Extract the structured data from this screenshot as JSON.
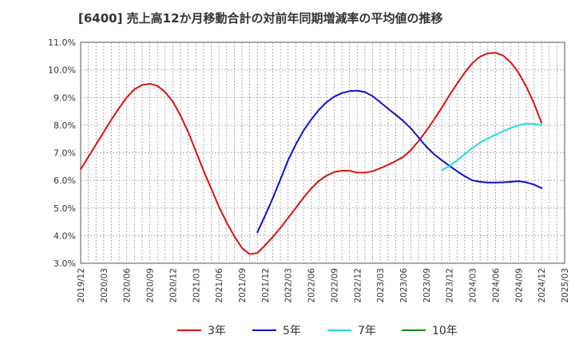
{
  "chart_data": {
    "type": "line",
    "title": "[6400]  売上高12か月移動合計の対前年同期増減率の平均値の推移",
    "xlabel": "",
    "ylabel": "",
    "ylim": [
      3.0,
      11.0
    ],
    "y_ticks": [
      "11.0%",
      "10.0%",
      "9.0%",
      "8.0%",
      "7.0%",
      "6.0%",
      "5.0%",
      "4.0%",
      "3.0%"
    ],
    "x_ticks": [
      "2019/12",
      "2020/03",
      "2020/06",
      "2020/09",
      "2020/12",
      "2021/03",
      "2021/06",
      "2021/09",
      "2021/12",
      "2022/03",
      "2022/06",
      "2022/09",
      "2022/12",
      "2023/03",
      "2023/06",
      "2023/09",
      "2023/12",
      "2024/03",
      "2024/06",
      "2024/09",
      "2024/12",
      "2025/03"
    ],
    "grid": true,
    "legend_position": "bottom",
    "series": [
      {
        "name": "3年",
        "color": "#dd1111",
        "x": [
          "2019/12",
          "2020/01",
          "2020/02",
          "2020/03",
          "2020/04",
          "2020/05",
          "2020/06",
          "2020/07",
          "2020/08",
          "2020/09",
          "2020/10",
          "2020/11",
          "2020/12",
          "2021/01",
          "2021/02",
          "2021/03",
          "2021/04",
          "2021/05",
          "2021/06",
          "2021/07",
          "2021/08",
          "2021/09",
          "2021/10",
          "2021/11",
          "2021/12",
          "2022/01",
          "2022/02",
          "2022/03",
          "2022/04",
          "2022/05",
          "2022/06",
          "2022/07",
          "2022/08",
          "2022/09",
          "2022/10",
          "2022/11",
          "2022/12",
          "2023/01",
          "2023/02",
          "2023/03",
          "2023/04",
          "2023/05",
          "2023/06",
          "2023/07",
          "2023/08",
          "2023/09",
          "2023/10",
          "2023/11",
          "2023/12",
          "2024/01",
          "2024/02",
          "2024/03",
          "2024/04",
          "2024/05",
          "2024/06",
          "2024/07",
          "2024/08",
          "2024/09",
          "2024/10",
          "2024/11",
          "2024/12"
        ],
        "values": [
          6.4,
          6.85,
          7.3,
          7.75,
          8.2,
          8.62,
          9.0,
          9.3,
          9.45,
          9.5,
          9.42,
          9.2,
          8.85,
          8.35,
          7.75,
          7.05,
          6.35,
          5.7,
          5.05,
          4.48,
          3.98,
          3.55,
          3.33,
          3.37,
          3.65,
          3.95,
          4.28,
          4.64,
          5.0,
          5.37,
          5.7,
          5.98,
          6.17,
          6.3,
          6.35,
          6.35,
          6.28,
          6.28,
          6.33,
          6.44,
          6.56,
          6.7,
          6.85,
          7.1,
          7.43,
          7.8,
          8.2,
          8.63,
          9.08,
          9.5,
          9.9,
          10.25,
          10.48,
          10.6,
          10.62,
          10.52,
          10.27,
          9.9,
          9.4,
          8.8,
          8.08
        ]
      },
      {
        "name": "5年",
        "color": "#1111cc",
        "x": [
          "2021/11",
          "2021/12",
          "2022/01",
          "2022/02",
          "2022/03",
          "2022/04",
          "2022/05",
          "2022/06",
          "2022/07",
          "2022/08",
          "2022/09",
          "2022/10",
          "2022/11",
          "2022/12",
          "2023/01",
          "2023/02",
          "2023/03",
          "2023/04",
          "2023/05",
          "2023/06",
          "2023/07",
          "2023/08",
          "2023/09",
          "2023/10",
          "2023/11",
          "2023/12",
          "2024/01",
          "2024/02",
          "2024/03",
          "2024/04",
          "2024/05",
          "2024/06",
          "2024/07",
          "2024/08",
          "2024/09",
          "2024/10",
          "2024/11",
          "2024/12"
        ],
        "values": [
          4.12,
          4.72,
          5.35,
          6.03,
          6.73,
          7.3,
          7.8,
          8.2,
          8.55,
          8.83,
          9.03,
          9.16,
          9.23,
          9.25,
          9.2,
          9.05,
          8.83,
          8.6,
          8.38,
          8.15,
          7.88,
          7.55,
          7.22,
          6.95,
          6.73,
          6.53,
          6.33,
          6.15,
          6.0,
          5.95,
          5.92,
          5.92,
          5.93,
          5.95,
          5.97,
          5.93,
          5.85,
          5.72
        ]
      },
      {
        "name": "7年",
        "color": "#22dddd",
        "x": [
          "2023/11",
          "2023/12",
          "2024/01",
          "2024/02",
          "2024/03",
          "2024/04",
          "2024/05",
          "2024/06",
          "2024/07",
          "2024/08",
          "2024/09",
          "2024/10",
          "2024/11",
          "2024/12"
        ],
        "values": [
          6.37,
          6.52,
          6.72,
          6.95,
          7.18,
          7.37,
          7.52,
          7.65,
          7.78,
          7.9,
          8.0,
          8.05,
          8.05,
          8.0
        ]
      },
      {
        "name": "10年",
        "color": "#118811",
        "x": [],
        "values": []
      }
    ]
  }
}
